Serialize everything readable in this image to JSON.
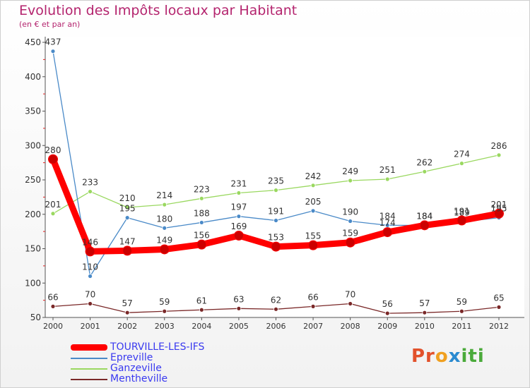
{
  "chart_data": {
    "type": "line",
    "title": "Evolution des Impôts locaux par Habitant",
    "subtitle": "(en € et par an)",
    "x": [
      2000,
      2001,
      2002,
      2003,
      2004,
      2005,
      2006,
      2007,
      2008,
      2009,
      2010,
      2011,
      2012
    ],
    "ylim": [
      50,
      450
    ],
    "yticks": [
      50,
      100,
      150,
      200,
      250,
      300,
      350,
      400,
      450
    ],
    "grid": false,
    "legend_position": "bottom-left",
    "series": [
      {
        "name": "TOURVILLE-LES-IFS",
        "color": "#ff0000",
        "values": [
          280,
          146,
          147,
          149,
          156,
          169,
          153,
          155,
          159,
          174,
          184,
          191,
          201
        ]
      },
      {
        "name": "Epreville",
        "color": "#4a8ac8",
        "values": [
          437,
          110,
          195,
          180,
          188,
          197,
          191,
          205,
          190,
          184,
          184,
          189,
          195
        ]
      },
      {
        "name": "Ganzeville",
        "color": "#9ad860",
        "values": [
          201,
          233,
          210,
          214,
          223,
          231,
          235,
          242,
          249,
          251,
          262,
          274,
          286
        ]
      },
      {
        "name": "Mentheville",
        "color": "#7a2828",
        "values": [
          66,
          70,
          57,
          59,
          61,
          63,
          62,
          66,
          70,
          56,
          57,
          59,
          65
        ]
      }
    ]
  },
  "logo": {
    "part1": "Pr",
    "part2": "o",
    "part3": "x",
    "part4": "iti"
  }
}
